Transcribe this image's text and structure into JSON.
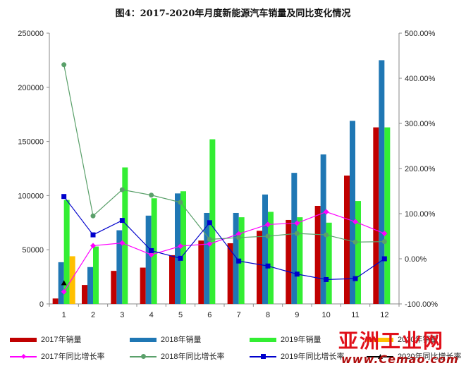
{
  "title": "图4：2017-2020年月度新能源汽车销量及同比变化情况",
  "watermark": {
    "main": "亚洲工业网",
    "sub": "www.Cemao.com"
  },
  "chart_data": {
    "type": "bar",
    "categories": [
      "1",
      "2",
      "3",
      "4",
      "5",
      "6",
      "7",
      "8",
      "9",
      "10",
      "11",
      "12"
    ],
    "y_left": {
      "min": 0,
      "max": 250000,
      "step": 50000,
      "ticks": [
        "0",
        "50000",
        "100000",
        "150000",
        "200000",
        "250000"
      ]
    },
    "y_right": {
      "min": -100,
      "max": 500,
      "step": 100,
      "unit": "%",
      "ticks": [
        "-100.00%",
        "0.00%",
        "100.00%",
        "200.00%",
        "300.00%",
        "400.00%",
        "500.00%"
      ]
    },
    "bar_series": [
      {
        "name": "2017年销量",
        "color": "#c00000",
        "values": [
          5000,
          17500,
          30500,
          33500,
          45000,
          58500,
          56000,
          67500,
          77500,
          90500,
          118500,
          163000
        ]
      },
      {
        "name": "2018年销量",
        "color": "#1f77b4",
        "values": [
          38500,
          34000,
          68000,
          81500,
          102000,
          84000,
          84000,
          101000,
          121000,
          138000,
          169000,
          225000
        ]
      },
      {
        "name": "2019年销量",
        "color": "#33ee33",
        "values": [
          96000,
          53000,
          126000,
          97500,
          104000,
          152000,
          80000,
          85000,
          80000,
          75000,
          95000,
          163000
        ]
      },
      {
        "name": "2020年销量",
        "color": "#ffc000",
        "values": [
          44000,
          null,
          null,
          null,
          null,
          null,
          null,
          null,
          null,
          null,
          null,
          null
        ]
      }
    ],
    "line_series": [
      {
        "name": "2017年同比增长率",
        "color": "#ff00ff",
        "marker": "diamond",
        "values": [
          -73,
          29,
          35,
          9,
          28,
          33,
          55,
          76,
          79,
          104,
          82,
          56
        ]
      },
      {
        "name": "2018年同比增长率",
        "color": "#5aa06a",
        "marker": "circle",
        "values": [
          430,
          95,
          153,
          141,
          125,
          43,
          47,
          50,
          56,
          53,
          37,
          38
        ]
      },
      {
        "name": "2019年同比增长率",
        "color": "#0000cc",
        "marker": "square",
        "values": [
          138,
          53,
          85,
          18,
          1,
          80,
          -5,
          -16,
          -34,
          -46,
          -44,
          0
        ]
      },
      {
        "name": "2020年同比增长率",
        "color": "#000000",
        "marker": "triangle",
        "values": [
          -54,
          null,
          null,
          null,
          null,
          null,
          null,
          null,
          null,
          null,
          null,
          null
        ]
      }
    ],
    "grid": false,
    "legend_position": "bottom"
  }
}
